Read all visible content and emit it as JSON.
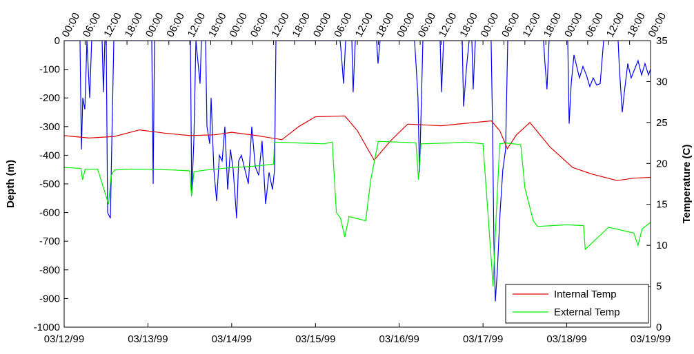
{
  "chart_data": {
    "type": "line",
    "ylabel": "Depth (m)",
    "y2label": "Temperature (C)",
    "xlim": [
      0,
      7
    ],
    "xticks": [
      {
        "value": 0,
        "label": "03/12/99"
      },
      {
        "value": 1,
        "label": "03/13/99"
      },
      {
        "value": 2,
        "label": "03/14/99"
      },
      {
        "value": 3,
        "label": "03/15/99"
      },
      {
        "value": 4,
        "label": "03/16/99"
      },
      {
        "value": 5,
        "label": "03/17/99"
      },
      {
        "value": 6,
        "label": "03/18/99"
      },
      {
        "value": 7,
        "label": "03/19/99"
      }
    ],
    "x2ticks": [
      {
        "value": 0,
        "label": "00:00"
      },
      {
        "value": 0.25,
        "label": "06:00"
      },
      {
        "value": 0.5,
        "label": "12:00"
      },
      {
        "value": 0.75,
        "label": "18:00"
      },
      {
        "value": 1,
        "label": "00:00"
      },
      {
        "value": 1.25,
        "label": "06:00"
      },
      {
        "value": 1.5,
        "label": "12:00"
      },
      {
        "value": 1.75,
        "label": "18:00"
      },
      {
        "value": 2,
        "label": "00:00"
      },
      {
        "value": 2.25,
        "label": "06:00"
      },
      {
        "value": 2.5,
        "label": "12:00"
      },
      {
        "value": 2.75,
        "label": "18:00"
      },
      {
        "value": 3,
        "label": "00:00"
      },
      {
        "value": 3.25,
        "label": "06:00"
      },
      {
        "value": 3.5,
        "label": "12:00"
      },
      {
        "value": 3.75,
        "label": "18:00"
      },
      {
        "value": 4,
        "label": "00:00"
      },
      {
        "value": 4.25,
        "label": "06:00"
      },
      {
        "value": 4.5,
        "label": "12:00"
      },
      {
        "value": 4.75,
        "label": "18:00"
      },
      {
        "value": 5,
        "label": "00:00"
      },
      {
        "value": 5.25,
        "label": "06:00"
      },
      {
        "value": 5.5,
        "label": "12:00"
      },
      {
        "value": 5.75,
        "label": "18:00"
      },
      {
        "value": 6,
        "label": "00:00"
      },
      {
        "value": 6.25,
        "label": "06:00"
      },
      {
        "value": 6.5,
        "label": "12:00"
      },
      {
        "value": 6.75,
        "label": "18:00"
      },
      {
        "value": 7,
        "label": "00:00"
      }
    ],
    "ylim": [
      -1000,
      0
    ],
    "yticks": [
      -1000,
      -900,
      -800,
      -700,
      -600,
      -500,
      -400,
      -300,
      -200,
      -100,
      0
    ],
    "y2lim": [
      0,
      35
    ],
    "y2ticks": [
      0,
      5,
      10,
      15,
      20,
      25,
      30,
      35
    ],
    "legend": "lower right",
    "series": [
      {
        "color": "#0000ff",
        "axis": "y",
        "x": [
          0,
          0.189,
          0.206,
          0.222,
          0.247,
          0.272,
          0.305,
          0.329,
          0.453,
          0.469,
          0.486,
          0.502,
          0.519,
          0.552,
          0.576,
          0.593,
          1.046,
          1.062,
          1.079,
          1.507,
          1.523,
          1.548,
          1.573,
          1.622,
          1.639,
          1.688,
          1.705,
          1.738,
          1.754,
          1.787,
          1.82,
          1.853,
          1.886,
          1.919,
          1.952,
          1.985,
          2.018,
          2.059,
          2.083,
          2.116,
          2.158,
          2.199,
          2.24,
          2.281,
          2.322,
          2.363,
          2.405,
          2.446,
          2.487,
          2.512,
          2.528,
          3.294,
          3.31,
          3.335,
          3.36,
          3.434,
          3.45,
          3.475,
          3.73,
          3.747,
          3.771,
          4.183,
          4.2,
          4.224,
          4.241,
          4.257,
          4.282,
          4.488,
          4.505,
          4.529,
          4.752,
          4.768,
          4.801,
          4.834,
          4.867,
          4.883,
          4.908,
          5.097,
          5.114,
          5.13,
          5.147,
          5.172,
          5.204,
          5.237,
          5.27,
          5.295,
          5.723,
          5.74,
          5.764,
          5.789,
          6.012,
          6.028,
          6.053,
          6.086,
          6.152,
          6.193,
          6.234,
          6.275,
          6.316,
          6.357,
          6.399,
          6.44,
          6.613,
          6.629,
          6.662,
          6.687,
          6.728,
          6.769,
          6.81,
          6.851,
          6.893,
          6.934,
          6.975,
          7
        ],
        "values": [
          0,
          0,
          -380,
          -200,
          -240,
          0,
          -200,
          0,
          0,
          -180,
          0,
          0,
          -600,
          -620,
          -250,
          0,
          0,
          -500,
          0,
          0,
          -540,
          -350,
          0,
          -150,
          0,
          0,
          -300,
          -360,
          -200,
          -450,
          -560,
          -400,
          -420,
          -300,
          -520,
          -380,
          -450,
          -620,
          -420,
          -400,
          -450,
          -500,
          -300,
          -440,
          -470,
          -350,
          -570,
          -460,
          -520,
          -450,
          0,
          0,
          -50,
          -150,
          0,
          0,
          -180,
          0,
          0,
          -80,
          0,
          0,
          -80,
          -200,
          -460,
          -300,
          0,
          0,
          -180,
          0,
          0,
          -230,
          -100,
          0,
          0,
          -170,
          0,
          0,
          -300,
          -700,
          -910,
          -800,
          -600,
          -450,
          -380,
          0,
          0,
          -80,
          -170,
          0,
          0,
          -290,
          -150,
          -50,
          -130,
          -90,
          -120,
          -160,
          -130,
          -155,
          -150,
          0,
          0,
          -100,
          -250,
          -180,
          -80,
          -130,
          -100,
          -70,
          -120,
          -80,
          -120,
          -100
        ]
      },
      {
        "name": "Internal Temp",
        "color": "#dd0000",
        "axis": "y2",
        "x": [
          0,
          0.3,
          0.6,
          0.9,
          1.2,
          1.5,
          1.8,
          2.0,
          2.3,
          2.6,
          2.8,
          3.0,
          3.35,
          3.5,
          3.7,
          3.9,
          4.1,
          4.5,
          4.8,
          5.1,
          5.2,
          5.29,
          5.4,
          5.56,
          5.8,
          6.07,
          6.3,
          6.6,
          6.8,
          7
        ],
        "values": [
          23.4,
          23.1,
          23.3,
          24.1,
          23.7,
          23.4,
          23.5,
          23.8,
          23.4,
          22.9,
          24.5,
          25.7,
          25.8,
          24.0,
          20.4,
          22.8,
          24.8,
          24.6,
          24.9,
          25.2,
          24.0,
          21.8,
          23.5,
          25.0,
          22.0,
          19.5,
          18.7,
          17.9,
          18.2,
          18.3
        ]
      },
      {
        "name": "External Temp",
        "color": "#00ee00",
        "axis": "y2",
        "x": [
          0,
          0.2,
          0.22,
          0.25,
          0.4,
          0.53,
          0.56,
          0.6,
          0.8,
          1.0,
          1.3,
          1.5,
          1.52,
          1.55,
          1.7,
          2.0,
          2.2,
          2.5,
          2.51,
          2.8,
          3.1,
          3.2,
          3.25,
          3.3,
          3.35,
          3.4,
          3.6,
          3.66,
          3.75,
          4.0,
          4.2,
          4.23,
          4.26,
          4.6,
          4.8,
          5.0,
          5.1,
          5.12,
          5.15,
          5.2,
          5.27,
          5.45,
          5.5,
          5.6,
          5.65,
          6.0,
          6.2,
          6.22,
          6.5,
          6.8,
          6.85,
          6.9,
          7
        ],
        "values": [
          19.5,
          19.4,
          18.0,
          19.3,
          19.3,
          15.0,
          18.5,
          19.2,
          19.3,
          19.3,
          19.2,
          19.1,
          16.0,
          19.0,
          19.2,
          19.5,
          19.6,
          19.9,
          22.6,
          22.5,
          22.4,
          22.6,
          14.0,
          13.3,
          11.0,
          13.5,
          13.0,
          18.0,
          22.7,
          22.6,
          22.5,
          18.0,
          22.4,
          22.5,
          22.6,
          22.4,
          8.0,
          5.0,
          12.0,
          22.4,
          22.5,
          22.3,
          17.0,
          13.0,
          12.3,
          12.5,
          12.4,
          9.5,
          12.2,
          11.5,
          10.0,
          12.0,
          12.8
        ]
      }
    ]
  }
}
